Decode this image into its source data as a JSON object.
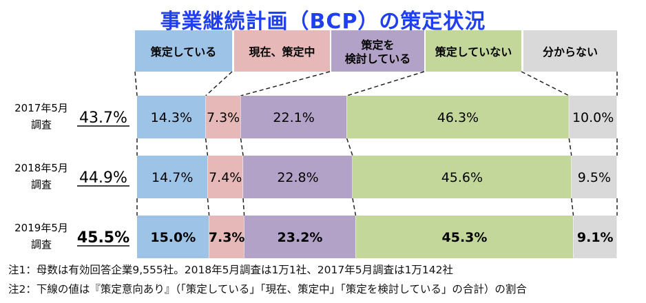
{
  "chart_data": {
    "type": "bar",
    "orientation": "horizontal",
    "stacked": true,
    "normalized": true,
    "title": "事業継続計画（BCP）の策定状況",
    "legend_position": "top",
    "categories": [
      "策定している",
      "現在、策定中",
      "策定を\n検討している",
      "策定していない",
      "分からない"
    ],
    "category_colors": [
      "#9dc3e6",
      "#e6b9b8",
      "#b3a2c7",
      "#c4d79b",
      "#d9d9d9"
    ],
    "rows": [
      {
        "label": "2017年5月\n調査",
        "summary": "43.7%",
        "bold": false,
        "values": [
          14.3,
          7.3,
          22.1,
          46.3,
          10.0
        ],
        "labels": [
          "14.3%",
          "7.3%",
          "22.1%",
          "46.3%",
          "10.0%"
        ]
      },
      {
        "label": "2018年5月\n調査",
        "summary": "44.9%",
        "bold": false,
        "values": [
          14.7,
          7.4,
          22.8,
          45.6,
          9.5
        ],
        "labels": [
          "14.7%",
          "7.4%",
          "22.8%",
          "45.6%",
          "9.5%"
        ]
      },
      {
        "label": "2019年5月\n調査",
        "summary": "45.5%",
        "bold": true,
        "values": [
          15.0,
          7.3,
          23.2,
          45.3,
          9.1
        ],
        "labels": [
          "15.0%",
          "7.3%",
          "23.2%",
          "45.3%",
          "9.1%"
        ]
      }
    ],
    "notes": [
      "注1：母数は有効回答企業9,555社。2018年5月調査は1万1社、2017年5月調査は1万142社",
      "注2：下線の値は『策定意向あり』（「策定している」「現在、策定中」「策定を検討している」の合計）の割合"
    ]
  }
}
